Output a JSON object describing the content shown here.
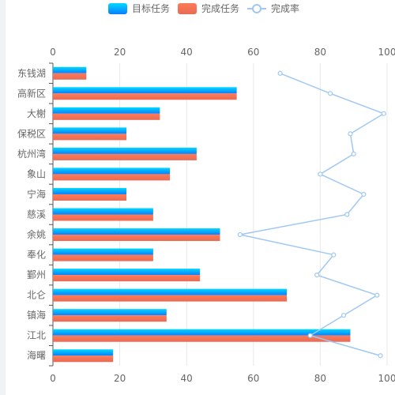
{
  "legend": {
    "target_label": "目标任务",
    "complete_label": "完成任务",
    "rate_label": "完成率"
  },
  "chart_data": {
    "type": "bar",
    "orientation": "horizontal",
    "categories": [
      "东钱湖",
      "高新区",
      "大榭",
      "保税区",
      "杭州湾",
      "象山",
      "宁海",
      "慈溪",
      "余姚",
      "奉化",
      "鄞州",
      "北仑",
      "镇海",
      "江北",
      "海曙"
    ],
    "series": [
      {
        "name": "目标任务",
        "type": "bar",
        "values": [
          10,
          55,
          32,
          22,
          43,
          35,
          22,
          30,
          50,
          30,
          44,
          70,
          34,
          89,
          18
        ]
      },
      {
        "name": "完成任务",
        "type": "bar",
        "values": [
          10,
          55,
          32,
          22,
          43,
          35,
          22,
          30,
          50,
          30,
          44,
          70,
          34,
          89,
          18
        ]
      },
      {
        "name": "完成率",
        "type": "line",
        "values": [
          68,
          83,
          99,
          89,
          90,
          80,
          93,
          88,
          56,
          84,
          79,
          97,
          87,
          77,
          98
        ]
      }
    ],
    "xlim": [
      0,
      100
    ],
    "xticks": [
      0,
      20,
      40,
      60,
      80,
      100
    ],
    "grid": true,
    "legend_position": "top-center",
    "colors": {
      "target_top": "#00d9ff",
      "target_bottom": "#0a7dff",
      "complete_top": "#ff7a57",
      "complete_bottom": "#e86b55",
      "rate_line": "#9fc8f4",
      "grid": "#e8e8e8",
      "axis": "#555555",
      "text": "#666666"
    }
  }
}
